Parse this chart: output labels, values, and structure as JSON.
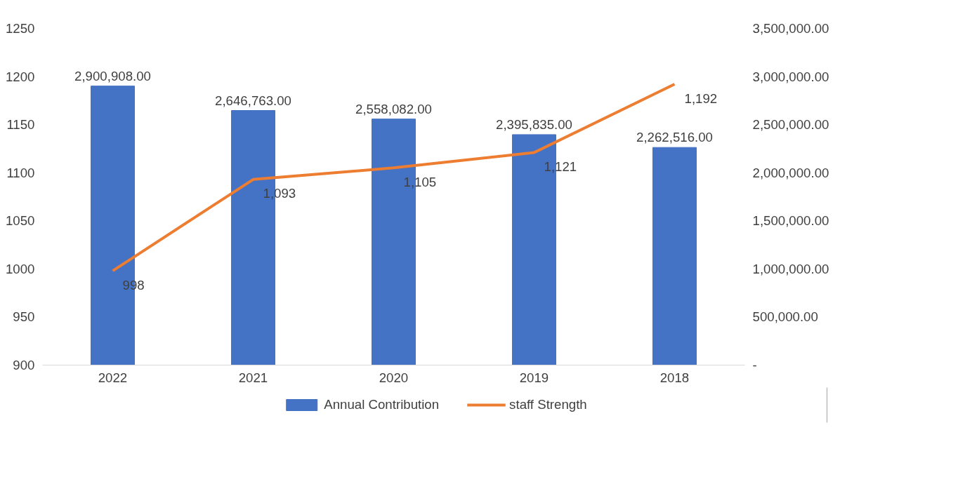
{
  "chart_data": {
    "type": "bar",
    "categories": [
      "2022",
      "2021",
      "2020",
      "2019",
      "2018"
    ],
    "series": [
      {
        "name": "Annual Contribution",
        "axis": "y2",
        "color": "#4472c4",
        "values": [
          2900908,
          2646763,
          2558082,
          2395835,
          2262516
        ],
        "value_labels": [
          "2,900,908.00",
          "2,646,763.00",
          "2,558,082.00",
          "2,395,835.00",
          "2,262,516.00"
        ]
      },
      {
        "name": "staff Strength",
        "type": "line",
        "axis": "y",
        "color": "#ed7d31",
        "values": [
          998,
          1093,
          1105,
          1121,
          1192
        ],
        "value_labels": [
          "998",
          "1,093",
          "1,105",
          "1,121",
          "1,192"
        ]
      }
    ],
    "ylim": [
      900,
      1250
    ],
    "yticks": [
      900,
      950,
      1000,
      1050,
      1100,
      1150,
      1200,
      1250
    ],
    "y2lim": [
      0,
      3500000
    ],
    "y2ticks": [
      {
        "value": 0,
        "label": "-"
      },
      {
        "value": 500000,
        "label": "500,000.00"
      },
      {
        "value": 1000000,
        "label": "1,000,000.00"
      },
      {
        "value": 1500000,
        "label": "1,500,000.00"
      },
      {
        "value": 2000000,
        "label": "2,000,000.00"
      },
      {
        "value": 2500000,
        "label": "2,500,000.00"
      },
      {
        "value": 3000000,
        "label": "3,000,000.00"
      },
      {
        "value": 3500000,
        "label": "3,500,000.00"
      }
    ],
    "grid": false,
    "legend": "bottom"
  }
}
